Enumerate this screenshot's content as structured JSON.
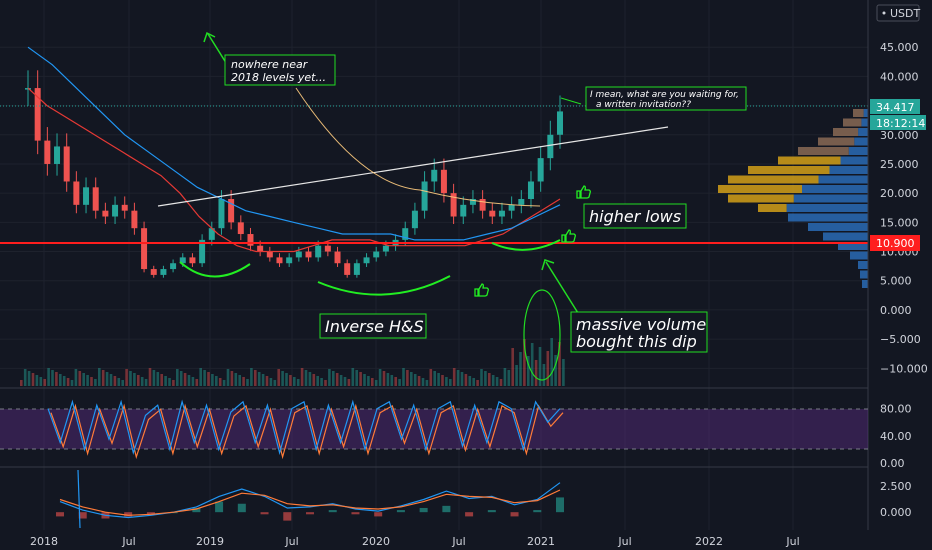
{
  "window": {
    "currency_label": "USDT"
  },
  "price_labels": {
    "current_price": "34.417",
    "countdown": "18:12:14",
    "horizontal_level": "10.900"
  },
  "annotations": {
    "nowhere_near": [
      "nowhere near",
      "2018 levels yet..."
    ],
    "waiting_for": [
      "I mean, what are you waiting for,",
      "a written invitation??"
    ],
    "higher_lows": "higher lows",
    "inverse_hs": "Inverse H&S",
    "massive_volume": [
      "massive volume",
      "bought this dip"
    ]
  },
  "colors": {
    "background": "#131722",
    "up_candle": "#26a69a",
    "down_candle": "#ef5350",
    "ma_red": "#e53935",
    "ma_blue": "#2196f3",
    "ma_orange": "#ffcc80",
    "level_line": "#ff1e1e",
    "annotation_green": "#22dd22",
    "stoch_band": "#5b2c83"
  },
  "icons": [
    "thumbs-up-icon",
    "arrow-icon",
    "currency-label-box"
  ],
  "chart_data": [
    {
      "type": "candlestick",
      "x_ticks": [
        "2018",
        "Jul",
        "2019",
        "Jul",
        "2020",
        "Jul",
        "2021",
        "Jul",
        "2022",
        "Jul"
      ],
      "y_ticks": [
        "45.000",
        "40.000",
        "35.000",
        "30.000",
        "25.000",
        "20.000",
        "15.000",
        "10.000",
        "5.000",
        "0.000",
        "−5.000",
        "−10.000"
      ],
      "ylim": [
        -12,
        50
      ],
      "closes": [
        38,
        29,
        25,
        28,
        22,
        18,
        21,
        17,
        16,
        18,
        17,
        14,
        7,
        6,
        7,
        8,
        9,
        8,
        12,
        14,
        19,
        15,
        13,
        11,
        10,
        9,
        8,
        9,
        10,
        9,
        11,
        10,
        8,
        6,
        8,
        9,
        10,
        11,
        12,
        14,
        17,
        22,
        24,
        20,
        16,
        18,
        19,
        17,
        16,
        17,
        18,
        19,
        22,
        26,
        30,
        34
      ],
      "moving_averages": [
        {
          "values": [
            38,
            35,
            33,
            31,
            29,
            27,
            25,
            23,
            20,
            16,
            13,
            11,
            10,
            10,
            10,
            11,
            12,
            12,
            12,
            11,
            11,
            11,
            11,
            11,
            12,
            13,
            15,
            17,
            19
          ]
        },
        {
          "values": [
            45,
            42,
            38,
            34,
            30,
            27,
            24,
            21,
            19,
            17,
            16,
            15,
            14,
            13,
            13,
            13,
            12,
            12,
            12,
            13,
            14,
            16,
            18
          ]
        },
        {
          "values": [
            29,
            27,
            24,
            22,
            20,
            19,
            18,
            18,
            18,
            18,
            18,
            19
          ]
        }
      ],
      "horizontal_level": 10.9,
      "trendline": {
        "from": [
          "2018-08",
          17.5
        ],
        "to": [
          "2021-06",
          31
        ]
      }
    },
    {
      "type": "stochastic",
      "y_ticks": [
        "80.00",
        "40.00",
        "0.00"
      ],
      "ylim": [
        0,
        100
      ],
      "band": [
        20,
        80
      ],
      "k": [
        80,
        30,
        90,
        20,
        85,
        35,
        90,
        15,
        70,
        85,
        20,
        90,
        30,
        85,
        20,
        75,
        90,
        30,
        85,
        15,
        80,
        90,
        20,
        85,
        30,
        90,
        20,
        80,
        90,
        35,
        85,
        20,
        80,
        90,
        25,
        85,
        30,
        90,
        80,
        20,
        90,
        60,
        80
      ]
    },
    {
      "type": "macd",
      "y_ticks": [
        "2.500",
        "0.000"
      ],
      "ylim": [
        -1.5,
        4
      ],
      "macd": [
        1,
        0.2,
        -0.3,
        -0.5,
        -0.3,
        0,
        0.5,
        1.5,
        2.2,
        1.5,
        0.4,
        0.5,
        0.8,
        0.3,
        0.1,
        0.6,
        1.2,
        2.0,
        1.3,
        1.5,
        0.7,
        1.2,
        2.8
      ],
      "signal": [
        1.2,
        0.5,
        0,
        -0.3,
        -0.2,
        0,
        0.3,
        1.0,
        1.8,
        1.6,
        0.8,
        0.6,
        0.7,
        0.4,
        0.3,
        0.5,
        1.0,
        1.7,
        1.5,
        1.4,
        0.9,
        1.1,
        2.1
      ]
    }
  ]
}
